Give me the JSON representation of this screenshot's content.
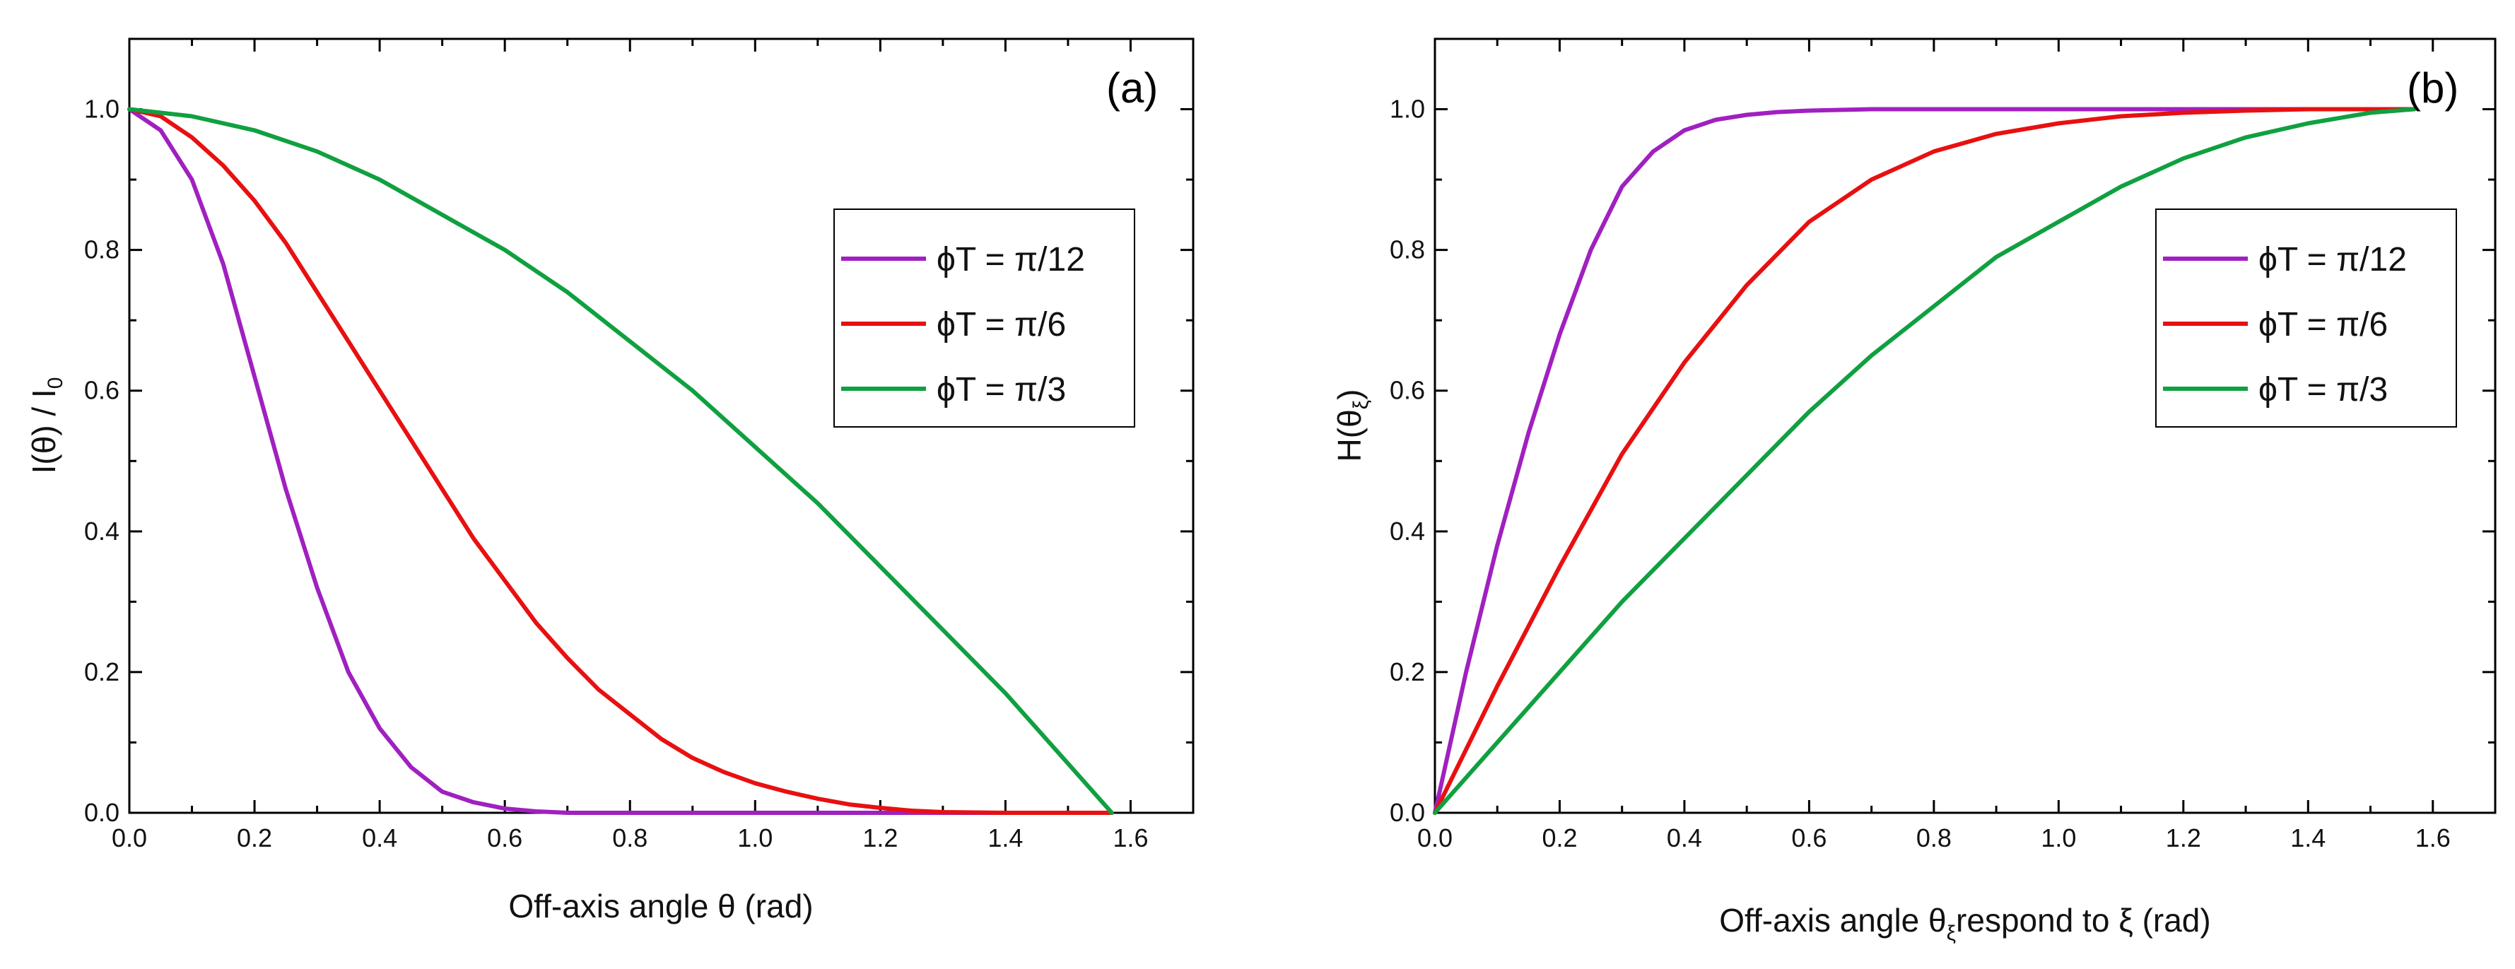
{
  "chart_data": [
    {
      "type": "line",
      "panel_label": "(a)",
      "title": "",
      "xlabel": "Off-axis angle θ (rad)",
      "ylabel": "I(θ) / I",
      "ylabel_sub": "0",
      "xlim": [
        0.0,
        1.7
      ],
      "ylim": [
        0.0,
        1.1
      ],
      "xticks": [
        "0.0",
        "0.2",
        "0.4",
        "0.6",
        "0.8",
        "1.0",
        "1.2",
        "1.4",
        "1.6"
      ],
      "yticks": [
        "0.0",
        "0.2",
        "0.4",
        "0.6",
        "0.8",
        "1.0"
      ],
      "legend_position": "upper-right",
      "series": [
        {
          "name": "ϕT = π/12",
          "color": "#a020c0",
          "x": [
            0.0,
            0.05,
            0.1,
            0.15,
            0.2,
            0.25,
            0.3,
            0.35,
            0.4,
            0.45,
            0.5,
            0.55,
            0.6,
            0.65,
            0.7,
            0.8,
            1.0,
            1.2,
            1.4,
            1.57
          ],
          "y": [
            1.0,
            0.97,
            0.9,
            0.78,
            0.62,
            0.46,
            0.32,
            0.2,
            0.12,
            0.065,
            0.03,
            0.015,
            0.006,
            0.002,
            0.0,
            0.0,
            0.0,
            0.0,
            0.0,
            0.0
          ]
        },
        {
          "name": "ϕT = π/6",
          "color": "#e81010",
          "x": [
            0.0,
            0.05,
            0.1,
            0.15,
            0.2,
            0.25,
            0.3,
            0.35,
            0.4,
            0.45,
            0.5,
            0.55,
            0.6,
            0.65,
            0.7,
            0.75,
            0.8,
            0.85,
            0.9,
            0.95,
            1.0,
            1.05,
            1.1,
            1.15,
            1.2,
            1.25,
            1.3,
            1.4,
            1.57
          ],
          "y": [
            1.0,
            0.99,
            0.96,
            0.92,
            0.87,
            0.81,
            0.74,
            0.67,
            0.6,
            0.53,
            0.46,
            0.39,
            0.33,
            0.27,
            0.22,
            0.175,
            0.14,
            0.105,
            0.078,
            0.058,
            0.042,
            0.03,
            0.02,
            0.012,
            0.007,
            0.003,
            0.001,
            0.0,
            0.0
          ]
        },
        {
          "name": "ϕT = π/3",
          "color": "#10a040",
          "x": [
            0.0,
            0.1,
            0.2,
            0.3,
            0.4,
            0.5,
            0.6,
            0.7,
            0.8,
            0.9,
            1.0,
            1.1,
            1.2,
            1.3,
            1.4,
            1.5,
            1.57
          ],
          "y": [
            1.0,
            0.99,
            0.97,
            0.94,
            0.9,
            0.85,
            0.8,
            0.74,
            0.67,
            0.6,
            0.52,
            0.44,
            0.35,
            0.26,
            0.17,
            0.07,
            0.0
          ]
        }
      ]
    },
    {
      "type": "line",
      "panel_label": "(b)",
      "title": "",
      "xlabel": "Off-axis angle θ",
      "xlabel_sub": "ξ",
      "xlabel_rest": "respond to ξ (rad)",
      "ylabel": "H(θ",
      "ylabel_sub": "ξ",
      "ylabel_end": ")",
      "xlim": [
        0.0,
        1.7
      ],
      "ylim": [
        0.0,
        1.1
      ],
      "xticks": [
        "0.0",
        "0.2",
        "0.4",
        "0.6",
        "0.8",
        "1.0",
        "1.2",
        "1.4",
        "1.6"
      ],
      "yticks": [
        "0.0",
        "0.2",
        "0.4",
        "0.6",
        "0.8",
        "1.0"
      ],
      "legend_position": "upper-right",
      "series": [
        {
          "name": "ϕT = π/12",
          "color": "#a020c0",
          "x": [
            0.0,
            0.05,
            0.1,
            0.15,
            0.2,
            0.25,
            0.3,
            0.35,
            0.4,
            0.45,
            0.5,
            0.55,
            0.6,
            0.7,
            0.8,
            1.0,
            1.2,
            1.4,
            1.57
          ],
          "y": [
            0.0,
            0.2,
            0.38,
            0.54,
            0.68,
            0.8,
            0.89,
            0.94,
            0.97,
            0.985,
            0.992,
            0.996,
            0.998,
            1.0,
            1.0,
            1.0,
            1.0,
            1.0,
            1.0
          ]
        },
        {
          "name": "ϕT = π/6",
          "color": "#e81010",
          "x": [
            0.0,
            0.1,
            0.2,
            0.3,
            0.4,
            0.5,
            0.6,
            0.7,
            0.8,
            0.9,
            1.0,
            1.1,
            1.2,
            1.3,
            1.4,
            1.5,
            1.57
          ],
          "y": [
            0.0,
            0.18,
            0.35,
            0.51,
            0.64,
            0.75,
            0.84,
            0.9,
            0.94,
            0.965,
            0.98,
            0.99,
            0.995,
            0.998,
            1.0,
            1.0,
            1.0
          ]
        },
        {
          "name": "ϕT = π/3",
          "color": "#10a040",
          "x": [
            0.0,
            0.1,
            0.2,
            0.3,
            0.4,
            0.5,
            0.6,
            0.7,
            0.8,
            0.9,
            1.0,
            1.1,
            1.2,
            1.3,
            1.4,
            1.5,
            1.57
          ],
          "y": [
            0.0,
            0.1,
            0.2,
            0.3,
            0.39,
            0.48,
            0.57,
            0.65,
            0.72,
            0.79,
            0.84,
            0.89,
            0.93,
            0.96,
            0.98,
            0.995,
            1.0
          ]
        }
      ]
    }
  ]
}
